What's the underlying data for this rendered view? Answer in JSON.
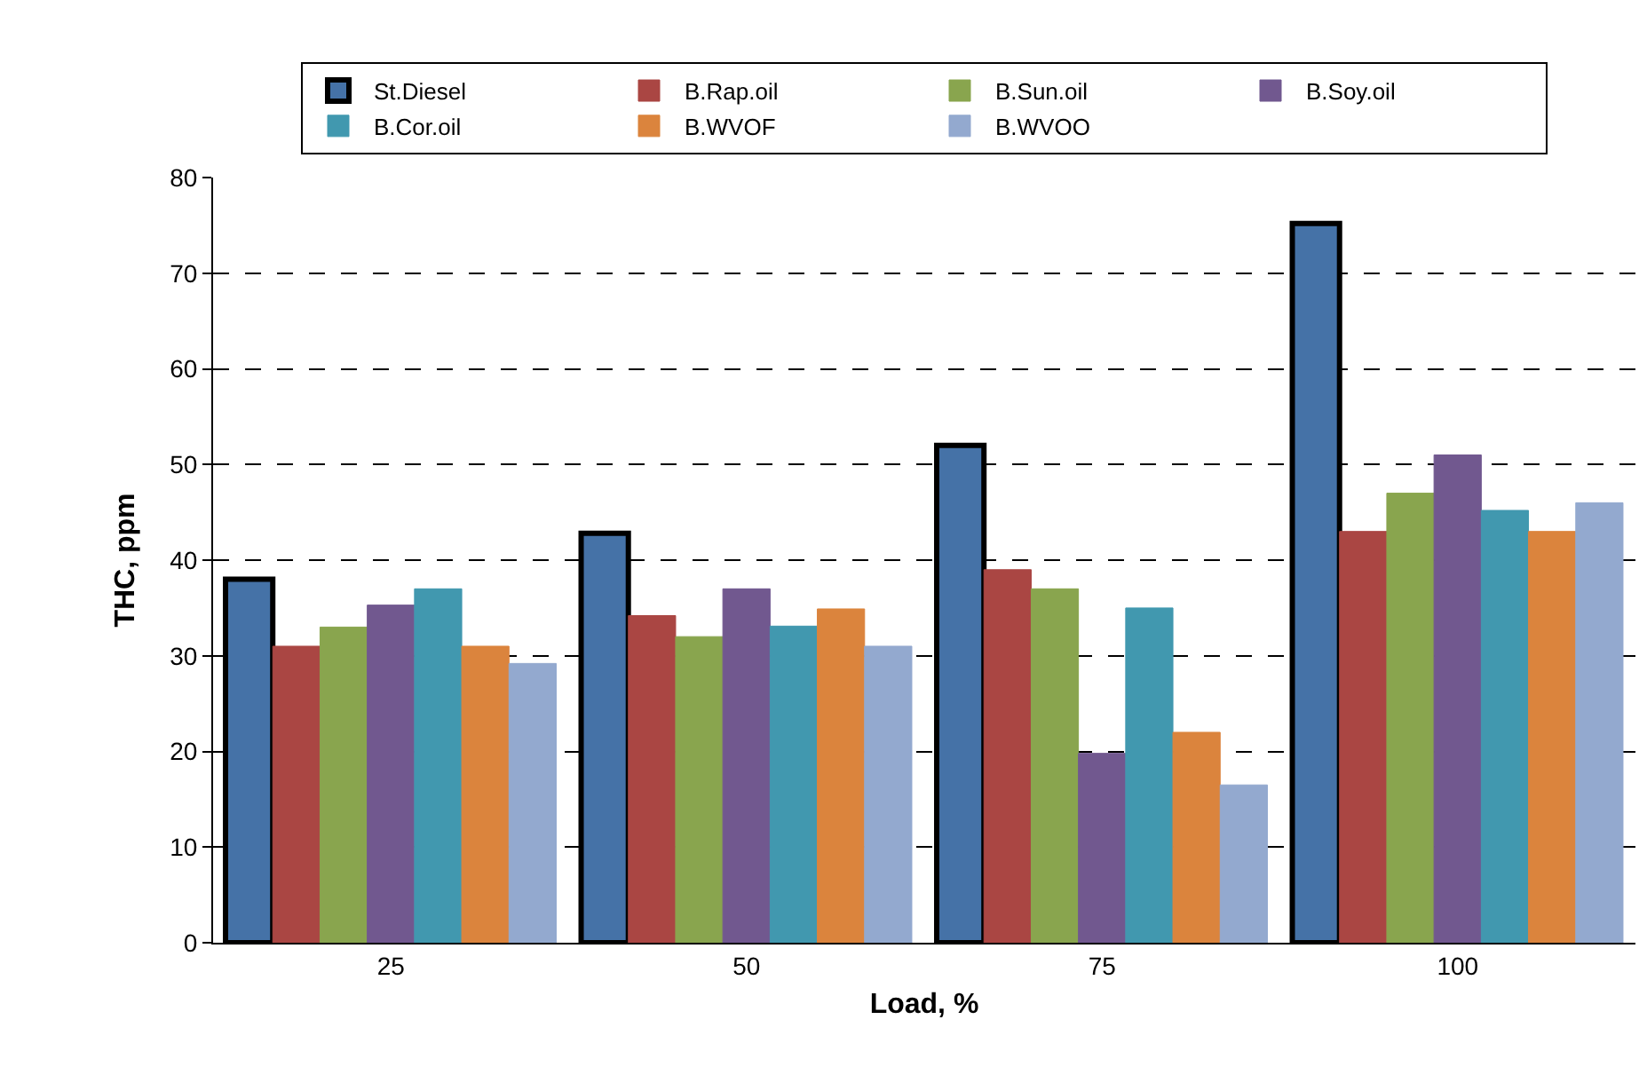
{
  "chart_data": {
    "type": "bar",
    "xlabel": "Load, %",
    "ylabel": "THC, ppm",
    "categories": [
      "25",
      "50",
      "75",
      "100"
    ],
    "series": [
      {
        "name": "St.Diesel",
        "color": "#4572a7",
        "values": [
          38,
          42.8,
          52,
          75.2
        ]
      },
      {
        "name": "B.Rap.oil",
        "color": "#aa4643",
        "values": [
          31,
          34.2,
          39,
          43
        ]
      },
      {
        "name": "B.Sun.oil",
        "color": "#89a54e",
        "values": [
          33,
          32,
          37,
          47
        ]
      },
      {
        "name": "B.Soy.oil",
        "color": "#71588f",
        "values": [
          35.3,
          37,
          19.8,
          51
        ]
      },
      {
        "name": "B.Cor.oil",
        "color": "#4198af",
        "values": [
          37,
          33.1,
          35,
          45.2
        ]
      },
      {
        "name": "B.WVOF",
        "color": "#db843d",
        "values": [
          31,
          34.9,
          22,
          43
        ]
      },
      {
        "name": "B.WVOO",
        "color": "#93a9cf",
        "values": [
          29.2,
          31,
          16.5,
          46
        ]
      }
    ],
    "ylim": [
      0,
      80
    ],
    "yticks": [
      0,
      10,
      20,
      30,
      40,
      50,
      60,
      70,
      80
    ],
    "grid": "y",
    "legend": "top"
  }
}
